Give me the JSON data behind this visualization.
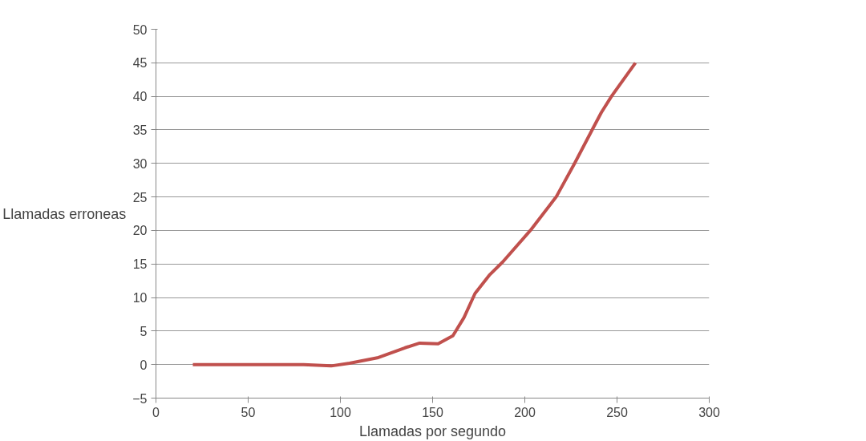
{
  "chart_data": {
    "type": "line",
    "xlabel": "Llamadas por segundo",
    "ylabel": "Llamadas erroneas",
    "x": [
      20,
      50,
      80,
      95,
      105,
      120,
      135,
      143,
      153,
      161,
      167,
      173,
      181,
      188,
      203,
      217,
      227,
      236.5,
      241.5,
      247,
      260
    ],
    "series": [
      {
        "color": "#c0504d",
        "values": [
          0,
          0,
          0,
          -0.2,
          0.2,
          1,
          2.5,
          3.2,
          3.1,
          4.3,
          7,
          10.6,
          13.4,
          15.3,
          20,
          25,
          30,
          35,
          37.6,
          40,
          45
        ]
      }
    ],
    "xlim": [
      0,
      300
    ],
    "xticks": [
      0,
      50,
      100,
      150,
      200,
      250,
      300
    ],
    "ylim": [
      -5,
      50
    ],
    "yticks": [
      -5,
      0,
      5,
      10,
      15,
      20,
      25,
      30,
      35,
      40,
      45,
      50
    ],
    "grid": "y",
    "marker": "none",
    "line_style": "solid"
  }
}
